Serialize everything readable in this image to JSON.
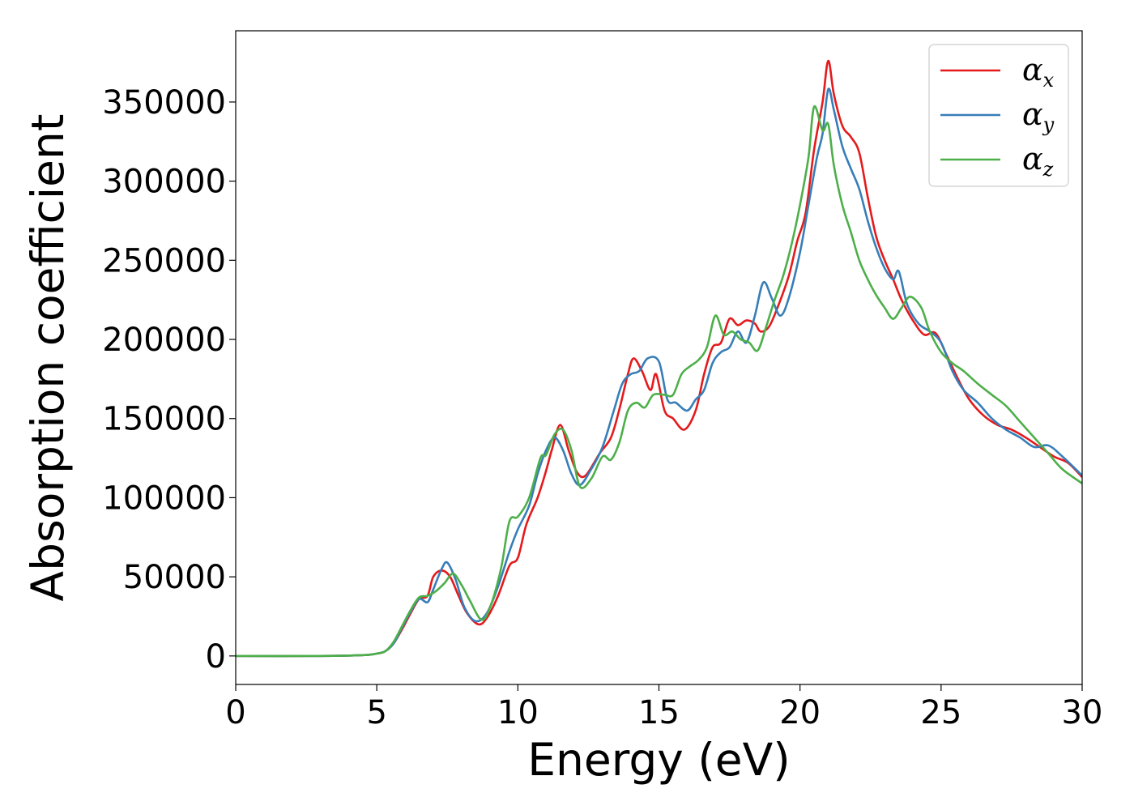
{
  "chart_data": {
    "type": "line",
    "title": "",
    "xlabel": "Energy (eV)",
    "ylabel": "Absorption coefficient",
    "xlim": [
      0,
      30
    ],
    "ylim": [
      -18000,
      395000
    ],
    "xticks": [
      0,
      5,
      10,
      15,
      20,
      25,
      30
    ],
    "yticks": [
      0,
      50000,
      100000,
      150000,
      200000,
      250000,
      300000,
      350000
    ],
    "grid": false,
    "legend_position": "top-right",
    "series": [
      {
        "name": "α_x",
        "label_base": "α",
        "label_sub": "x",
        "color": "#e41a1c",
        "points": [
          [
            0,
            0
          ],
          [
            3,
            0
          ],
          [
            4.5,
            500
          ],
          [
            5,
            1500
          ],
          [
            5.3,
            3000
          ],
          [
            5.6,
            8000
          ],
          [
            5.9,
            17000
          ],
          [
            6.2,
            27000
          ],
          [
            6.5,
            36000
          ],
          [
            6.8,
            38000
          ],
          [
            7.0,
            50000
          ],
          [
            7.3,
            54000
          ],
          [
            7.6,
            50000
          ],
          [
            7.9,
            38000
          ],
          [
            8.2,
            27000
          ],
          [
            8.6,
            20000
          ],
          [
            8.9,
            24000
          ],
          [
            9.3,
            38000
          ],
          [
            9.7,
            57000
          ],
          [
            10.0,
            62000
          ],
          [
            10.3,
            83000
          ],
          [
            10.7,
            100000
          ],
          [
            11.0,
            117000
          ],
          [
            11.2,
            130000
          ],
          [
            11.5,
            146000
          ],
          [
            11.8,
            130000
          ],
          [
            12.1,
            116000
          ],
          [
            12.4,
            114000
          ],
          [
            12.9,
            128000
          ],
          [
            13.3,
            138000
          ],
          [
            13.6,
            156000
          ],
          [
            13.9,
            178000
          ],
          [
            14.1,
            188000
          ],
          [
            14.4,
            180000
          ],
          [
            14.7,
            168000
          ],
          [
            14.9,
            178000
          ],
          [
            15.2,
            155000
          ],
          [
            15.5,
            150000
          ],
          [
            15.9,
            143000
          ],
          [
            16.3,
            155000
          ],
          [
            16.6,
            178000
          ],
          [
            16.9,
            195000
          ],
          [
            17.2,
            198000
          ],
          [
            17.5,
            213000
          ],
          [
            17.8,
            209000
          ],
          [
            18.1,
            212000
          ],
          [
            18.4,
            210000
          ],
          [
            18.6,
            205000
          ],
          [
            18.9,
            208000
          ],
          [
            19.2,
            220000
          ],
          [
            19.6,
            240000
          ],
          [
            19.9,
            262000
          ],
          [
            20.2,
            280000
          ],
          [
            20.5,
            320000
          ],
          [
            20.8,
            350000
          ],
          [
            21.0,
            376000
          ],
          [
            21.2,
            355000
          ],
          [
            21.5,
            335000
          ],
          [
            21.8,
            328000
          ],
          [
            22.1,
            318000
          ],
          [
            22.4,
            290000
          ],
          [
            22.7,
            265000
          ],
          [
            23.0,
            250000
          ],
          [
            23.3,
            238000
          ],
          [
            23.6,
            225000
          ],
          [
            24.0,
            212000
          ],
          [
            24.4,
            203000
          ],
          [
            24.8,
            204000
          ],
          [
            25.2,
            190000
          ],
          [
            25.6,
            175000
          ],
          [
            26.0,
            162000
          ],
          [
            26.5,
            152000
          ],
          [
            27.0,
            146000
          ],
          [
            27.5,
            143000
          ],
          [
            28.0,
            138000
          ],
          [
            28.5,
            132000
          ],
          [
            29.0,
            126000
          ],
          [
            29.5,
            122000
          ],
          [
            30,
            113000
          ]
        ]
      },
      {
        "name": "α_y",
        "label_base": "α",
        "label_sub": "y",
        "color": "#377eb8",
        "points": [
          [
            0,
            0
          ],
          [
            3,
            0
          ],
          [
            4.5,
            500
          ],
          [
            5,
            1500
          ],
          [
            5.3,
            3000
          ],
          [
            5.6,
            8000
          ],
          [
            5.9,
            18000
          ],
          [
            6.2,
            28000
          ],
          [
            6.5,
            36000
          ],
          [
            6.8,
            34000
          ],
          [
            7.0,
            42000
          ],
          [
            7.3,
            55000
          ],
          [
            7.5,
            59000
          ],
          [
            7.8,
            48000
          ],
          [
            8.1,
            31000
          ],
          [
            8.5,
            22000
          ],
          [
            8.9,
            27000
          ],
          [
            9.3,
            44000
          ],
          [
            9.7,
            66000
          ],
          [
            10.0,
            80000
          ],
          [
            10.4,
            95000
          ],
          [
            10.7,
            115000
          ],
          [
            11.0,
            130000
          ],
          [
            11.3,
            138000
          ],
          [
            11.6,
            130000
          ],
          [
            11.9,
            115000
          ],
          [
            12.2,
            108000
          ],
          [
            12.6,
            118000
          ],
          [
            13.0,
            132000
          ],
          [
            13.4,
            155000
          ],
          [
            13.7,
            172000
          ],
          [
            14.0,
            178000
          ],
          [
            14.3,
            180000
          ],
          [
            14.6,
            188000
          ],
          [
            15.0,
            186000
          ],
          [
            15.3,
            162000
          ],
          [
            15.6,
            160000
          ],
          [
            16.0,
            155000
          ],
          [
            16.3,
            162000
          ],
          [
            16.6,
            168000
          ],
          [
            16.9,
            185000
          ],
          [
            17.2,
            192000
          ],
          [
            17.5,
            195000
          ],
          [
            17.8,
            205000
          ],
          [
            18.1,
            198000
          ],
          [
            18.4,
            215000
          ],
          [
            18.7,
            236000
          ],
          [
            19.0,
            226000
          ],
          [
            19.3,
            215000
          ],
          [
            19.6,
            226000
          ],
          [
            20.0,
            255000
          ],
          [
            20.3,
            285000
          ],
          [
            20.6,
            315000
          ],
          [
            20.8,
            330000
          ],
          [
            21.0,
            358000
          ],
          [
            21.2,
            345000
          ],
          [
            21.5,
            322000
          ],
          [
            21.8,
            308000
          ],
          [
            22.1,
            295000
          ],
          [
            22.4,
            275000
          ],
          [
            22.7,
            258000
          ],
          [
            23.0,
            245000
          ],
          [
            23.3,
            238000
          ],
          [
            23.5,
            243000
          ],
          [
            23.8,
            222000
          ],
          [
            24.2,
            210000
          ],
          [
            24.6,
            205000
          ],
          [
            25.0,
            198000
          ],
          [
            25.4,
            180000
          ],
          [
            25.8,
            168000
          ],
          [
            26.3,
            160000
          ],
          [
            26.8,
            150000
          ],
          [
            27.3,
            143000
          ],
          [
            27.8,
            138000
          ],
          [
            28.3,
            132000
          ],
          [
            28.8,
            133000
          ],
          [
            29.3,
            126000
          ],
          [
            30,
            114000
          ]
        ]
      },
      {
        "name": "α_z",
        "label_base": "α",
        "label_sub": "z",
        "color": "#4daf4a",
        "points": [
          [
            0,
            0
          ],
          [
            3,
            0
          ],
          [
            4.5,
            500
          ],
          [
            5,
            1500
          ],
          [
            5.3,
            3000
          ],
          [
            5.6,
            9000
          ],
          [
            5.9,
            19000
          ],
          [
            6.2,
            29000
          ],
          [
            6.5,
            37000
          ],
          [
            6.8,
            38000
          ],
          [
            7.1,
            41000
          ],
          [
            7.4,
            46000
          ],
          [
            7.7,
            52000
          ],
          [
            8.0,
            45000
          ],
          [
            8.3,
            35000
          ],
          [
            8.7,
            23000
          ],
          [
            9.0,
            30000
          ],
          [
            9.4,
            55000
          ],
          [
            9.7,
            85000
          ],
          [
            10.0,
            88000
          ],
          [
            10.4,
            100000
          ],
          [
            10.8,
            125000
          ],
          [
            11.0,
            127000
          ],
          [
            11.3,
            140000
          ],
          [
            11.6,
            143000
          ],
          [
            11.9,
            130000
          ],
          [
            12.2,
            107000
          ],
          [
            12.6,
            112000
          ],
          [
            13.0,
            126000
          ],
          [
            13.3,
            124000
          ],
          [
            13.6,
            135000
          ],
          [
            13.9,
            155000
          ],
          [
            14.2,
            160000
          ],
          [
            14.5,
            157000
          ],
          [
            14.8,
            165000
          ],
          [
            15.2,
            165000
          ],
          [
            15.5,
            165000
          ],
          [
            15.8,
            178000
          ],
          [
            16.1,
            183000
          ],
          [
            16.4,
            187000
          ],
          [
            16.7,
            195000
          ],
          [
            17.0,
            215000
          ],
          [
            17.3,
            203000
          ],
          [
            17.6,
            205000
          ],
          [
            17.9,
            200000
          ],
          [
            18.2,
            198000
          ],
          [
            18.5,
            193000
          ],
          [
            18.8,
            208000
          ],
          [
            19.1,
            225000
          ],
          [
            19.4,
            240000
          ],
          [
            19.7,
            260000
          ],
          [
            20.0,
            285000
          ],
          [
            20.3,
            315000
          ],
          [
            20.5,
            347000
          ],
          [
            20.8,
            332000
          ],
          [
            21.0,
            336000
          ],
          [
            21.2,
            310000
          ],
          [
            21.5,
            285000
          ],
          [
            21.8,
            268000
          ],
          [
            22.1,
            250000
          ],
          [
            22.4,
            238000
          ],
          [
            22.7,
            228000
          ],
          [
            23.0,
            220000
          ],
          [
            23.3,
            213000
          ],
          [
            23.6,
            220000
          ],
          [
            23.9,
            227000
          ],
          [
            24.3,
            220000
          ],
          [
            24.6,
            205000
          ],
          [
            25.0,
            192000
          ],
          [
            25.4,
            185000
          ],
          [
            25.8,
            180000
          ],
          [
            26.3,
            172000
          ],
          [
            26.8,
            165000
          ],
          [
            27.3,
            158000
          ],
          [
            27.8,
            148000
          ],
          [
            28.3,
            138000
          ],
          [
            28.8,
            128000
          ],
          [
            29.3,
            118000
          ],
          [
            30,
            109000
          ]
        ]
      }
    ]
  }
}
